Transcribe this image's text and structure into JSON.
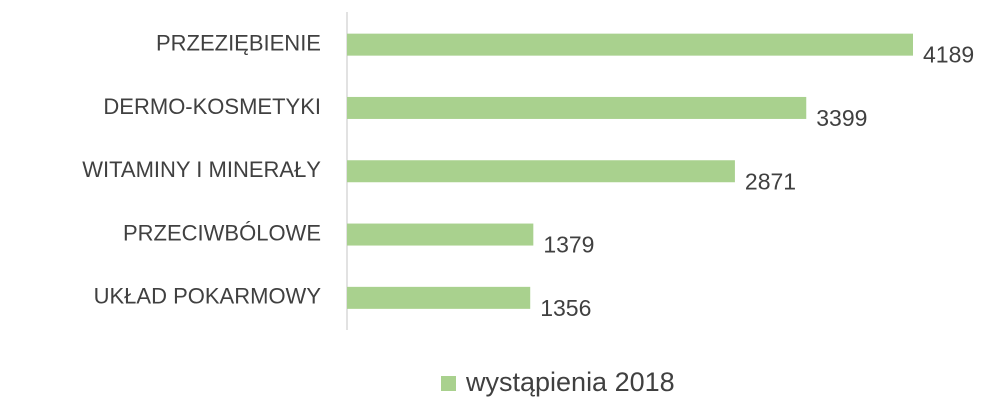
{
  "chart_data": {
    "type": "bar",
    "orientation": "horizontal",
    "categories": [
      "PRZEZIĘBIENIE",
      "DERMO-KOSMETYKI",
      "WITAMINY I MINERAŁY",
      "PRZECIWBÓLOWE",
      "UKŁAD POKARMOWY"
    ],
    "series": [
      {
        "name": "wystąpienia 2018",
        "color": "#a9d18e",
        "values": [
          4189,
          3399,
          2871,
          1379,
          1356
        ]
      }
    ],
    "legend": "bottom"
  }
}
